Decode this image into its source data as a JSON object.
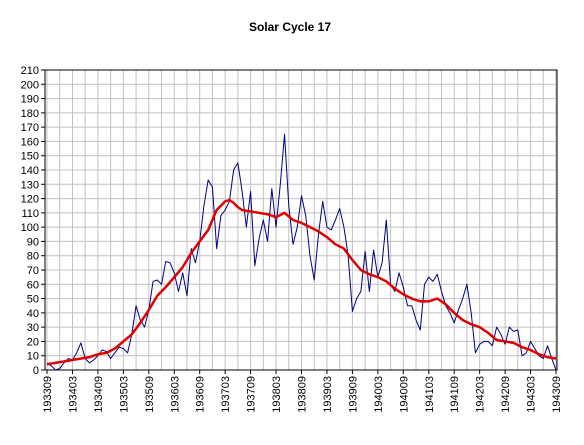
{
  "chart_data": {
    "type": "line",
    "title": "Solar Cycle 17",
    "categories": [
      "193309",
      null,
      null,
      null,
      null,
      null,
      "193403",
      null,
      null,
      null,
      null,
      null,
      "193409",
      null,
      null,
      null,
      null,
      null,
      "193503",
      null,
      null,
      null,
      null,
      null,
      "193509",
      null,
      null,
      null,
      null,
      null,
      "193603",
      null,
      null,
      null,
      null,
      null,
      "193609",
      null,
      null,
      null,
      null,
      null,
      "193703",
      null,
      null,
      null,
      null,
      null,
      "193709",
      null,
      null,
      null,
      null,
      null,
      "193803",
      null,
      null,
      null,
      null,
      null,
      "193809",
      null,
      null,
      null,
      null,
      null,
      "193903",
      null,
      null,
      null,
      null,
      null,
      "193909",
      null,
      null,
      null,
      null,
      null,
      "194003",
      null,
      null,
      null,
      null,
      null,
      "194009",
      null,
      null,
      null,
      null,
      null,
      "194103",
      null,
      null,
      null,
      null,
      null,
      "194109",
      null,
      null,
      null,
      null,
      null,
      "194203",
      null,
      null,
      null,
      null,
      null,
      "194209",
      null,
      null,
      null,
      null,
      null,
      "194303",
      null,
      null,
      null,
      null,
      null,
      "194309"
    ],
    "series": [
      {
        "color": "#000080",
        "width": 1,
        "values": [
          5,
          3,
          0,
          1,
          5,
          8,
          7,
          12,
          19,
          8,
          5,
          7,
          10,
          14,
          13,
          8,
          12,
          16,
          15,
          12,
          25,
          45,
          35,
          30,
          42,
          62,
          63,
          60,
          76,
          75,
          68,
          55,
          68,
          52,
          85,
          75,
          90,
          115,
          133,
          128,
          85,
          108,
          112,
          118,
          140,
          145,
          125,
          100,
          125,
          73,
          92,
          105,
          90,
          127,
          100,
          130,
          165,
          115,
          88,
          100,
          122,
          108,
          80,
          63,
          95,
          118,
          100,
          98,
          105,
          113,
          100,
          80,
          41,
          50,
          55,
          83,
          55,
          84,
          65,
          75,
          105,
          60,
          55,
          68,
          58,
          45,
          45,
          35,
          28,
          60,
          65,
          62,
          67,
          55,
          45,
          40,
          33,
          42,
          50,
          60,
          40,
          12,
          18,
          20,
          20,
          17,
          30,
          25,
          18,
          30,
          27,
          28,
          10,
          12,
          20,
          15,
          10,
          8,
          17,
          8,
          0
        ]
      },
      {
        "color": "#e00000",
        "width": 2.5,
        "values": [
          4,
          4.5,
          5,
          5.5,
          6,
          6.5,
          7,
          7.5,
          8,
          8.5,
          9,
          10,
          11,
          11.5,
          12,
          13.5,
          15,
          17.5,
          20,
          22.5,
          25,
          29,
          33,
          37.5,
          42,
          47,
          52,
          55,
          58,
          61.5,
          65,
          68.5,
          72,
          77,
          82,
          86,
          90,
          94,
          98,
          105,
          112,
          115,
          118,
          119,
          117,
          114,
          112,
          111.5,
          111,
          110.5,
          110,
          109.5,
          109,
          108,
          107,
          108.5,
          110,
          107.5,
          105,
          104,
          103,
          101.5,
          100,
          98.5,
          97,
          95,
          93,
          90.5,
          88,
          86.5,
          85,
          81,
          77,
          73.5,
          70,
          68.5,
          67,
          66,
          65,
          63.5,
          62,
          59.5,
          57,
          55,
          53,
          51.5,
          50,
          49,
          48,
          48,
          48,
          49,
          50,
          48,
          46,
          43,
          40,
          37.5,
          35,
          33.5,
          32,
          31,
          30,
          28,
          26,
          23.5,
          21,
          20.5,
          20,
          19.5,
          19,
          17.5,
          16,
          15,
          14,
          12.5,
          11,
          10,
          9,
          8.5,
          8
        ]
      }
    ],
    "ylim": [
      0,
      210
    ],
    "yticks": [
      0,
      10,
      20,
      30,
      40,
      50,
      60,
      70,
      80,
      90,
      100,
      110,
      120,
      130,
      140,
      150,
      160,
      170,
      180,
      190,
      200,
      210
    ],
    "grid": true
  }
}
